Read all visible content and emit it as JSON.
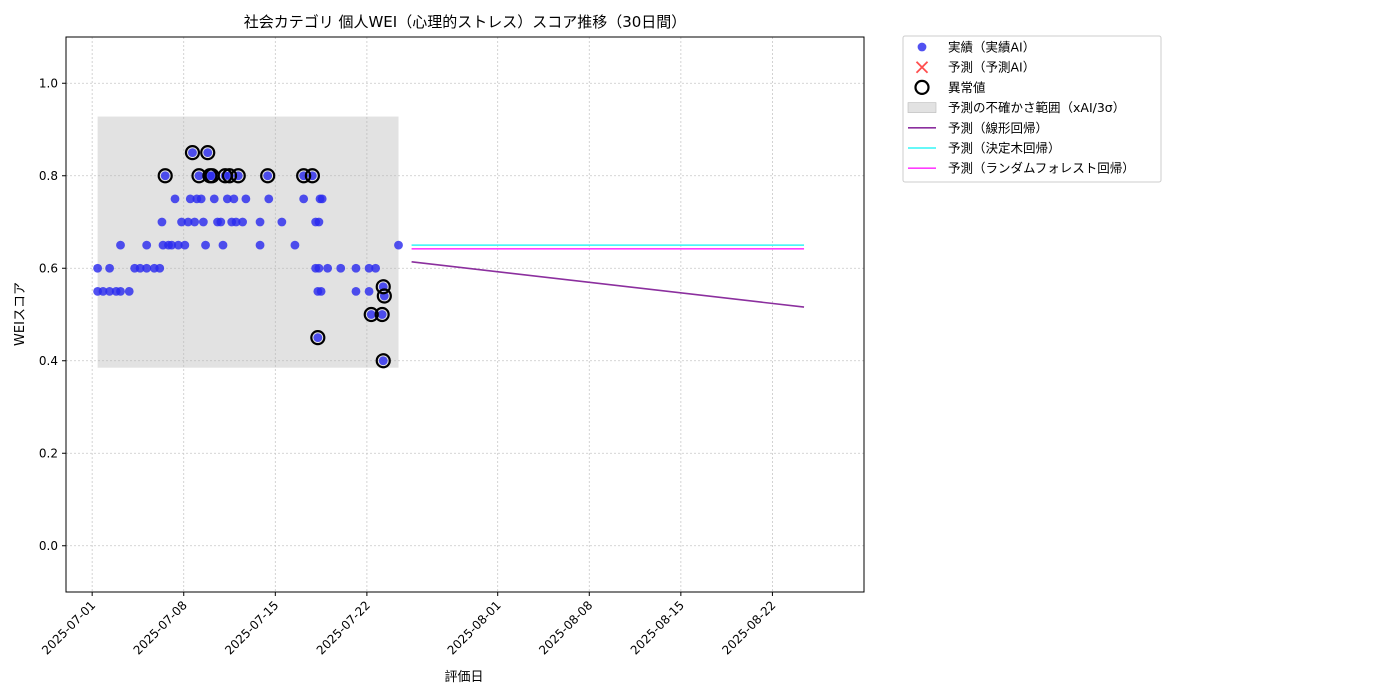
{
  "chart_data": {
    "type": "scatter",
    "title": "社会カテゴリ 個人WEI（心理的ストレス）スコア推移（30日間）",
    "xlabel": "評価日",
    "ylabel": "WEIスコア",
    "ylim": [
      -0.1,
      1.1
    ],
    "xlim": [
      "2025-06-29",
      "2025-08-29"
    ],
    "x_ticks": [
      "2025-07-01",
      "2025-07-08",
      "2025-07-15",
      "2025-07-22",
      "2025-08-01",
      "2025-08-08",
      "2025-08-15",
      "2025-08-22"
    ],
    "y_ticks": [
      "0.0",
      "0.2",
      "0.4",
      "0.6",
      "0.8",
      "1.0"
    ],
    "grid": true,
    "legend_position": "outside-upper-right",
    "legend": [
      {
        "key": "actual",
        "label": "実績（実績AI）"
      },
      {
        "key": "predicted",
        "label": "予測（予測AI）"
      },
      {
        "key": "anomaly",
        "label": "異常値"
      },
      {
        "key": "band",
        "label": "予測の不確かさ範囲（xAI/3σ）"
      },
      {
        "key": "linear",
        "label": "予測（線形回帰）"
      },
      {
        "key": "tree",
        "label": "予測（決定木回帰）"
      },
      {
        "key": "forest",
        "label": "予測（ランダムフォレスト回帰）"
      }
    ],
    "colors": {
      "actual": "#2b2bee",
      "predicted": "#ff3b3b",
      "anomaly": "#000000",
      "band": "#dddddd",
      "linear": "#8b2f9e",
      "tree": "#33f5f5",
      "forest": "#ff3dff"
    },
    "uncertainty_band": {
      "x_start": "2025-07-01 10:00",
      "x_end": "2025-07-24 10:00",
      "y_low": 0.385,
      "y_high": 0.928
    },
    "actual": [
      {
        "x": "2025-07-01 10:00",
        "y": 0.55
      },
      {
        "x": "2025-07-01 10:00",
        "y": 0.6
      },
      {
        "x": "2025-07-01 20:00",
        "y": 0.55
      },
      {
        "x": "2025-07-02 08:00",
        "y": 0.55
      },
      {
        "x": "2025-07-02 08:00",
        "y": 0.6
      },
      {
        "x": "2025-07-02 20:00",
        "y": 0.55
      },
      {
        "x": "2025-07-03 04:00",
        "y": 0.55
      },
      {
        "x": "2025-07-03 04:00",
        "y": 0.65
      },
      {
        "x": "2025-07-03 20:00",
        "y": 0.55
      },
      {
        "x": "2025-07-04 06:00",
        "y": 0.6
      },
      {
        "x": "2025-07-04 16:00",
        "y": 0.6
      },
      {
        "x": "2025-07-05 04:00",
        "y": 0.6
      },
      {
        "x": "2025-07-05 04:00",
        "y": 0.65
      },
      {
        "x": "2025-07-05 18:00",
        "y": 0.6
      },
      {
        "x": "2025-07-06 04:00",
        "y": 0.6
      },
      {
        "x": "2025-07-06 08:00",
        "y": 0.7
      },
      {
        "x": "2025-07-06 10:00",
        "y": 0.65
      },
      {
        "x": "2025-07-06 14:00",
        "y": 0.8
      },
      {
        "x": "2025-07-06 20:00",
        "y": 0.65
      },
      {
        "x": "2025-07-07 02:00",
        "y": 0.65
      },
      {
        "x": "2025-07-07 08:00",
        "y": 0.75
      },
      {
        "x": "2025-07-07 14:00",
        "y": 0.65
      },
      {
        "x": "2025-07-07 20:00",
        "y": 0.7
      },
      {
        "x": "2025-07-08 02:00",
        "y": 0.65
      },
      {
        "x": "2025-07-08 08:00",
        "y": 0.7
      },
      {
        "x": "2025-07-08 12:00",
        "y": 0.75
      },
      {
        "x": "2025-07-08 16:00",
        "y": 0.85
      },
      {
        "x": "2025-07-08 20:00",
        "y": 0.7
      },
      {
        "x": "2025-07-09 00:00",
        "y": 0.75
      },
      {
        "x": "2025-07-09 04:00",
        "y": 0.8
      },
      {
        "x": "2025-07-09 08:00",
        "y": 0.75
      },
      {
        "x": "2025-07-09 12:00",
        "y": 0.7
      },
      {
        "x": "2025-07-09 16:00",
        "y": 0.65
      },
      {
        "x": "2025-07-09 20:00",
        "y": 0.85
      },
      {
        "x": "2025-07-10 00:00",
        "y": 0.8
      },
      {
        "x": "2025-07-10 04:00",
        "y": 0.8
      },
      {
        "x": "2025-07-10 08:00",
        "y": 0.75
      },
      {
        "x": "2025-07-10 14:00",
        "y": 0.7
      },
      {
        "x": "2025-07-10 20:00",
        "y": 0.7
      },
      {
        "x": "2025-07-11 00:00",
        "y": 0.65
      },
      {
        "x": "2025-07-11 04:00",
        "y": 0.8
      },
      {
        "x": "2025-07-11 08:00",
        "y": 0.75
      },
      {
        "x": "2025-07-11 12:00",
        "y": 0.8
      },
      {
        "x": "2025-07-11 16:00",
        "y": 0.7
      },
      {
        "x": "2025-07-11 20:00",
        "y": 0.75
      },
      {
        "x": "2025-07-12 00:00",
        "y": 0.7
      },
      {
        "x": "2025-07-12 04:00",
        "y": 0.8
      },
      {
        "x": "2025-07-12 12:00",
        "y": 0.7
      },
      {
        "x": "2025-07-12 18:00",
        "y": 0.75
      },
      {
        "x": "2025-07-13 20:00",
        "y": 0.7
      },
      {
        "x": "2025-07-13 20:00",
        "y": 0.65
      },
      {
        "x": "2025-07-14 10:00",
        "y": 0.8
      },
      {
        "x": "2025-07-14 12:00",
        "y": 0.75
      },
      {
        "x": "2025-07-15 12:00",
        "y": 0.7
      },
      {
        "x": "2025-07-16 12:00",
        "y": 0.65
      },
      {
        "x": "2025-07-17 04:00",
        "y": 0.8
      },
      {
        "x": "2025-07-17 04:00",
        "y": 0.75
      },
      {
        "x": "2025-07-17 20:00",
        "y": 0.8
      },
      {
        "x": "2025-07-18 02:00",
        "y": 0.7
      },
      {
        "x": "2025-07-18 02:00",
        "y": 0.6
      },
      {
        "x": "2025-07-18 06:00",
        "y": 0.55
      },
      {
        "x": "2025-07-18 06:00",
        "y": 0.45
      },
      {
        "x": "2025-07-18 08:00",
        "y": 0.6
      },
      {
        "x": "2025-07-18 08:00",
        "y": 0.7
      },
      {
        "x": "2025-07-18 10:00",
        "y": 0.75
      },
      {
        "x": "2025-07-18 12:00",
        "y": 0.55
      },
      {
        "x": "2025-07-18 14:00",
        "y": 0.75
      },
      {
        "x": "2025-07-19 00:00",
        "y": 0.6
      },
      {
        "x": "2025-07-20 00:00",
        "y": 0.6
      },
      {
        "x": "2025-07-21 04:00",
        "y": 0.55
      },
      {
        "x": "2025-07-21 04:00",
        "y": 0.6
      },
      {
        "x": "2025-07-22 04:00",
        "y": 0.55
      },
      {
        "x": "2025-07-22 04:00",
        "y": 0.6
      },
      {
        "x": "2025-07-22 08:00",
        "y": 0.5
      },
      {
        "x": "2025-07-22 16:00",
        "y": 0.6
      },
      {
        "x": "2025-07-23 04:00",
        "y": 0.5
      },
      {
        "x": "2025-07-23 06:00",
        "y": 0.4
      },
      {
        "x": "2025-07-23 06:00",
        "y": 0.56
      },
      {
        "x": "2025-07-23 08:00",
        "y": 0.54
      },
      {
        "x": "2025-07-24 10:00",
        "y": 0.65
      }
    ],
    "anomalies": [
      {
        "x": "2025-07-06 14:00",
        "y": 0.8
      },
      {
        "x": "2025-07-08 16:00",
        "y": 0.85
      },
      {
        "x": "2025-07-09 04:00",
        "y": 0.8
      },
      {
        "x": "2025-07-09 20:00",
        "y": 0.85
      },
      {
        "x": "2025-07-10 00:00",
        "y": 0.8
      },
      {
        "x": "2025-07-10 04:00",
        "y": 0.8
      },
      {
        "x": "2025-07-11 04:00",
        "y": 0.8
      },
      {
        "x": "2025-07-11 12:00",
        "y": 0.8
      },
      {
        "x": "2025-07-12 04:00",
        "y": 0.8
      },
      {
        "x": "2025-07-14 10:00",
        "y": 0.8
      },
      {
        "x": "2025-07-17 04:00",
        "y": 0.8
      },
      {
        "x": "2025-07-17 20:00",
        "y": 0.8
      },
      {
        "x": "2025-07-18 06:00",
        "y": 0.45
      },
      {
        "x": "2025-07-22 08:00",
        "y": 0.5
      },
      {
        "x": "2025-07-23 04:00",
        "y": 0.5
      },
      {
        "x": "2025-07-23 06:00",
        "y": 0.4
      },
      {
        "x": "2025-07-23 06:00",
        "y": 0.56
      },
      {
        "x": "2025-07-23 08:00",
        "y": 0.54
      }
    ],
    "forecast_lines": [
      {
        "key": "linear",
        "x": [
          "2025-07-25 10:00",
          "2025-08-24 10:00"
        ],
        "y": [
          0.614,
          0.516
        ]
      },
      {
        "key": "forest",
        "x": [
          "2025-07-25 10:00",
          "2025-08-24 10:00"
        ],
        "y": [
          0.642,
          0.642
        ]
      },
      {
        "key": "tree",
        "x": [
          "2025-07-25 10:00",
          "2025-08-24 10:00"
        ],
        "y": [
          0.65,
          0.65
        ]
      }
    ]
  }
}
